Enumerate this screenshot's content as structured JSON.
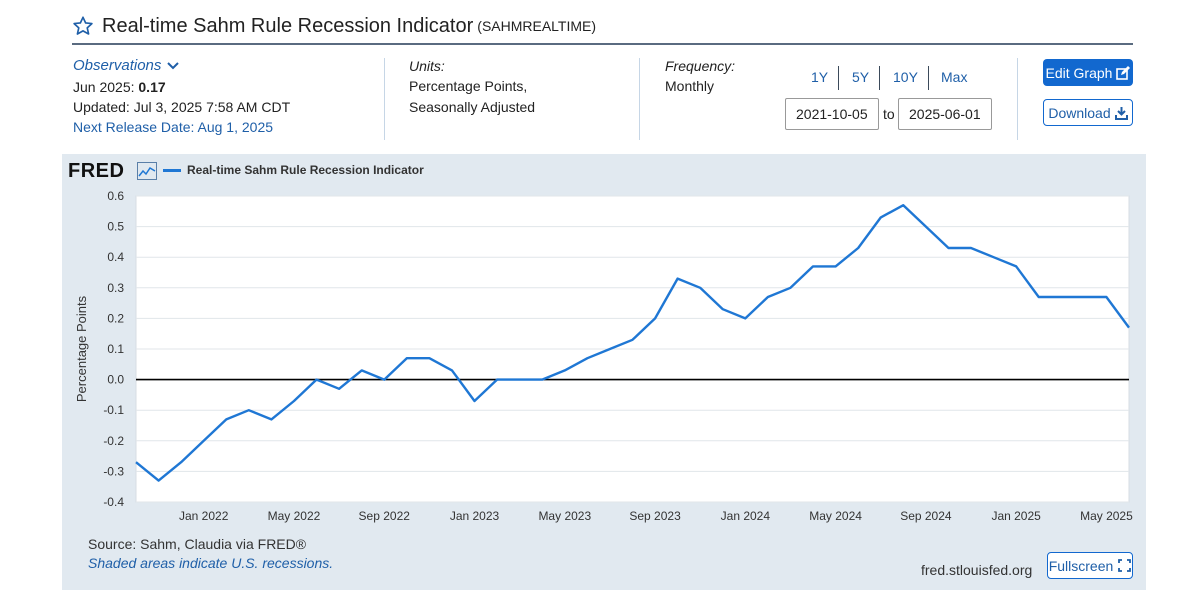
{
  "header": {
    "title": "Real-time Sahm Rule Recession Indicator",
    "series_id": "(SAHMREALTIME)"
  },
  "observations": {
    "label": "Observations",
    "date_label": "Jun 2025:",
    "value": "0.17",
    "updated": "Updated: Jul 3, 2025 7:58 AM CDT",
    "next_release": "Next Release Date: Aug 1, 2025"
  },
  "units": {
    "label": "Units:",
    "line1": "Percentage Points,",
    "line2": "Seasonally Adjusted"
  },
  "frequency": {
    "label": "Frequency:",
    "value": "Monthly"
  },
  "range": {
    "buttons": [
      "1Y",
      "5Y",
      "10Y",
      "Max"
    ],
    "start": "2021-10-05",
    "to": "to",
    "end": "2025-06-01"
  },
  "actions": {
    "edit_graph": "Edit Graph",
    "download": "Download",
    "fullscreen": "Fullscreen"
  },
  "footer": {
    "source": "Source: Sahm, Claudia via FRED®",
    "recession_note": "Shaded areas indicate U.S. recessions.",
    "url": "fred.stlouisfed.org"
  },
  "logo": "FRED",
  "colors": {
    "line": "#1f77d4",
    "panel": "#e1e9f0",
    "accent": "#1268cf"
  },
  "chart_data": {
    "type": "line",
    "legend": "Real-time Sahm Rule Recession Indicator",
    "ylabel": "Percentage Points",
    "ylim": [
      -0.4,
      0.6
    ],
    "yticks": [
      "-0.4",
      "-0.3",
      "-0.2",
      "-0.1",
      "0.0",
      "0.1",
      "0.2",
      "0.3",
      "0.4",
      "0.5",
      "0.6"
    ],
    "xticks": [
      "Jan 2022",
      "May 2022",
      "Sep 2022",
      "Jan 2023",
      "May 2023",
      "Sep 2023",
      "Jan 2024",
      "May 2024",
      "Sep 2024",
      "Jan 2025",
      "May 2025"
    ],
    "grid": true,
    "series": [
      {
        "name": "Real-time Sahm Rule Recession Indicator",
        "x": [
          "2021-10",
          "2021-11",
          "2021-12",
          "2022-01",
          "2022-02",
          "2022-03",
          "2022-04",
          "2022-05",
          "2022-06",
          "2022-07",
          "2022-08",
          "2022-09",
          "2022-10",
          "2022-11",
          "2022-12",
          "2023-01",
          "2023-02",
          "2023-03",
          "2023-04",
          "2023-05",
          "2023-06",
          "2023-07",
          "2023-08",
          "2023-09",
          "2023-10",
          "2023-11",
          "2023-12",
          "2024-01",
          "2024-02",
          "2024-03",
          "2024-04",
          "2024-05",
          "2024-06",
          "2024-07",
          "2024-08",
          "2024-09",
          "2024-10",
          "2024-11",
          "2024-12",
          "2025-01",
          "2025-02",
          "2025-03",
          "2025-04",
          "2025-05",
          "2025-06"
        ],
        "values": [
          -0.27,
          -0.33,
          -0.27,
          -0.2,
          -0.13,
          -0.1,
          -0.13,
          -0.07,
          0.0,
          -0.03,
          0.03,
          0.0,
          0.07,
          0.07,
          0.03,
          -0.07,
          0.0,
          0.0,
          0.0,
          0.03,
          0.07,
          0.1,
          0.13,
          0.2,
          0.33,
          0.3,
          0.23,
          0.2,
          0.27,
          0.3,
          0.37,
          0.37,
          0.43,
          0.53,
          0.57,
          0.5,
          0.43,
          0.43,
          0.4,
          0.37,
          0.27,
          0.27,
          0.27,
          0.27,
          0.17
        ]
      }
    ]
  }
}
